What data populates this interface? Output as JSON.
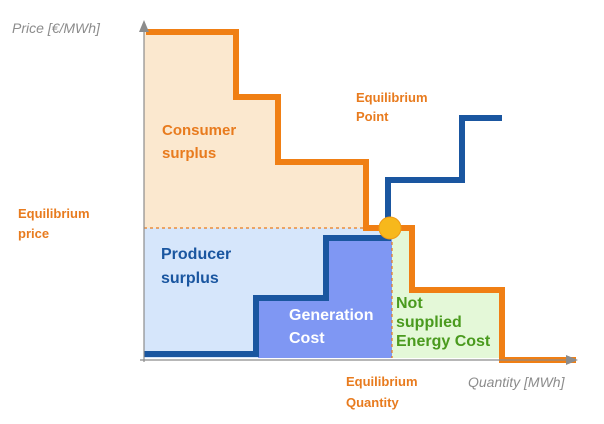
{
  "axes": {
    "y_label": "Price [€/MWh]",
    "x_label": "Quantity [MWh]"
  },
  "labels": {
    "consumer_surplus": [
      "Consumer",
      "surplus"
    ],
    "producer_surplus": [
      "Producer",
      "surplus"
    ],
    "generation_cost": [
      "Generation",
      "Cost"
    ],
    "not_supplied": [
      "Not",
      "supplied",
      "Energy Cost"
    ],
    "equilibrium_point": [
      "Equilibrium",
      "Point"
    ],
    "equilibrium_price": [
      "Equilibrium",
      "price"
    ],
    "equilibrium_quantity": [
      "Equilibrium",
      "Quantity"
    ]
  },
  "colors": {
    "demand_curve": "#f07f14",
    "supply_curve": "#1a56a0",
    "consumer_area": "#fbe8cf",
    "producer_area": "#d6e6fb",
    "generation_area": "#7f97f3",
    "not_supplied_area": "#e4f8d8",
    "equilibrium_marker": "#f7b81c"
  }
}
